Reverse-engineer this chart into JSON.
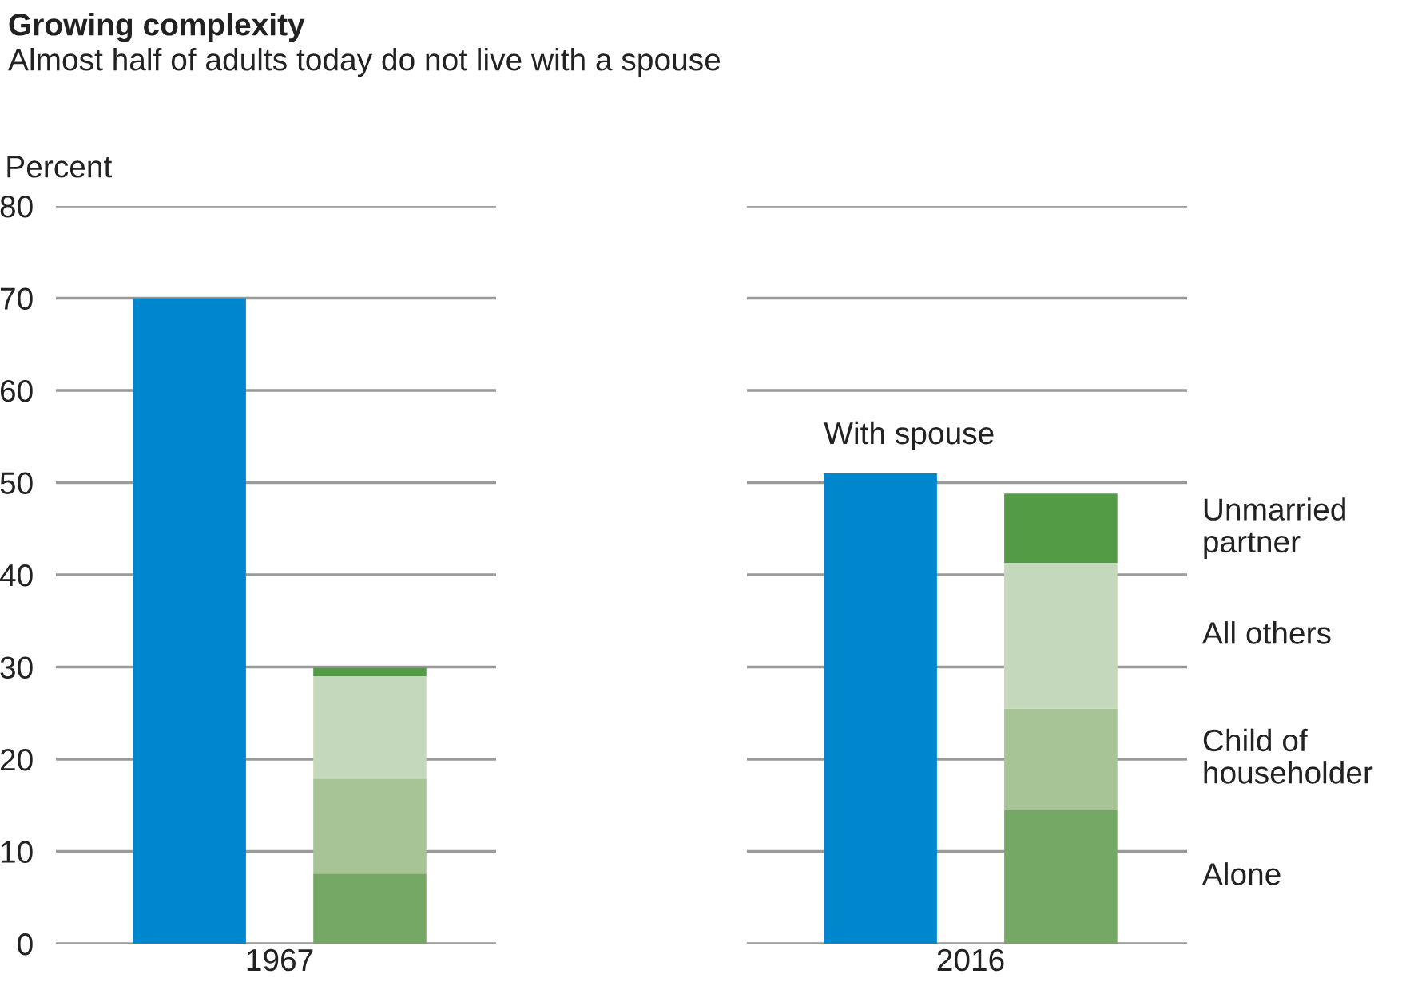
{
  "chart_data": {
    "type": "bar",
    "title": "Growing complexity",
    "subtitle": "Almost half of adults today do not live with a spouse",
    "ylabel": "Percent",
    "stacked": true,
    "categories": [
      null,
      null,
      null,
      null
    ],
    "ylim": [
      0,
      80
    ],
    "yticks": [
      0,
      10,
      20,
      30,
      40,
      50,
      60,
      70,
      80
    ],
    "grid": "y",
    "annotations": [
      "1967",
      "2016"
    ],
    "series": [
      {
        "name": "With spouse",
        "color": "#0086cc",
        "values": [
          70,
          null,
          51,
          null
        ]
      },
      {
        "name": "Alone",
        "color": "#76a865",
        "values": [
          null,
          7.6,
          null,
          14.5
        ]
      },
      {
        "name": "Child of\nhouseholder",
        "color": "#a6c496",
        "values": [
          null,
          10.3,
          null,
          11.0
        ]
      },
      {
        "name": "All others",
        "color": "#c4d9bc",
        "values": [
          null,
          11.1,
          null,
          15.8
        ]
      },
      {
        "name": "Unmarried\npartner",
        "color": "#539c45",
        "values": [
          null,
          0.9,
          null,
          7.5
        ]
      }
    ]
  }
}
